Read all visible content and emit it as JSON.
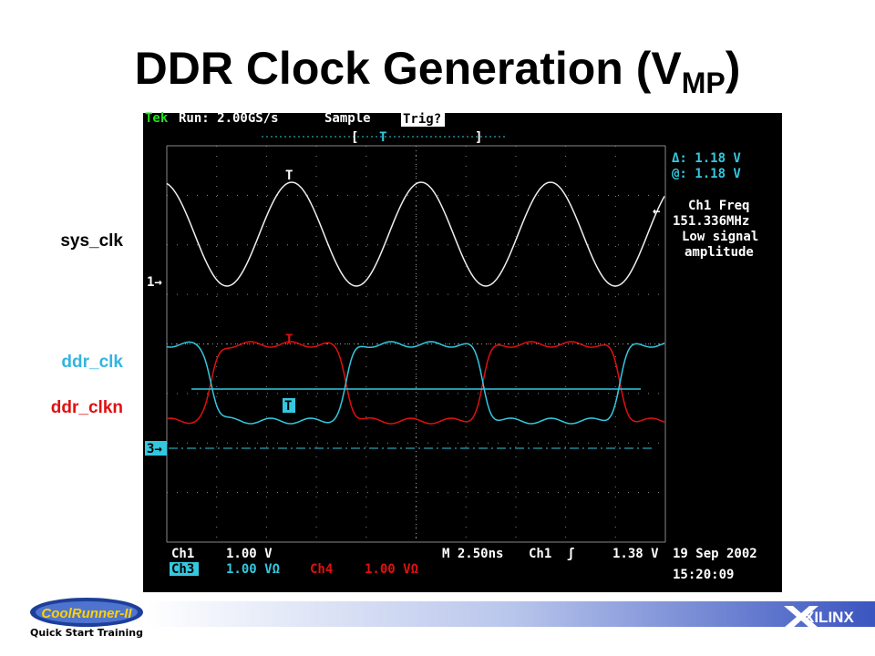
{
  "title": {
    "main": "DDR Clock Generation (V",
    "sub": "MP",
    "close": ")"
  },
  "signal_labels": {
    "sys_clk": "sys_clk",
    "ddr_clk": "ddr_clk",
    "ddr_clkn": "ddr_clkn"
  },
  "scope": {
    "header": {
      "brand": "Tek",
      "run": "Run: 2.00GS/s",
      "mode": "Sample",
      "trigger": "Trig?",
      "bracket_open": "[",
      "trigger_marker": "T",
      "bracket_close": "]"
    },
    "readout": {
      "delta": "Δ: 1.18 V",
      "at": "@: 1.18 V",
      "measure": "Ch1 Freq",
      "freq": "151.336MHz",
      "note_1": "Low signal",
      "note_2": "amplitude"
    },
    "markers": {
      "ch1_trigger": "T",
      "ch4_trigger": "T",
      "ch3_trigger": "T",
      "ch1_ground": "1→",
      "ch3_ground": "3→",
      "trigger_level": "←"
    },
    "footer": {
      "ch1": "Ch1",
      "ch1_scale": "1.00 V",
      "timebase": "M 2.50ns",
      "trig_source": "Ch1",
      "trig_slope": "ʃ",
      "trig_level": "1.38 V",
      "ch3": "Ch3",
      "ch3_scale": "1.00 VΩ",
      "ch4": "Ch4",
      "ch4_scale": "1.00 VΩ",
      "date": "19 Sep 2002",
      "time": "15:20:09"
    }
  },
  "footer": {
    "logo": "CoolRunner-II",
    "course": "Quick Start Training",
    "brand": "XILINX"
  }
}
